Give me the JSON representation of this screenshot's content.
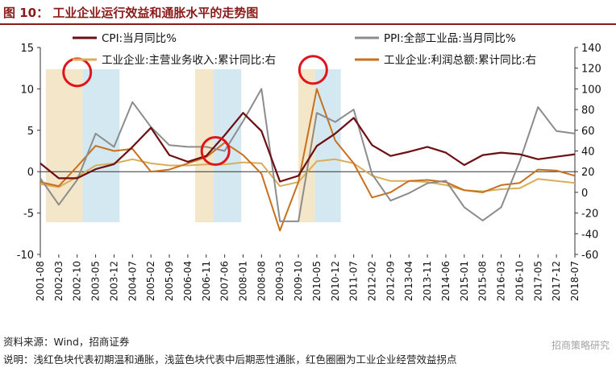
{
  "header": {
    "title": "图 10：  工业企业运行效益和通胀水平的走势图"
  },
  "footer": {
    "source": "资料来源：Wind，招商证券",
    "description": "说明：浅红色块代表初期温和通胀，浅蓝色块代表中后期恶性通胀，红色圈圈为工业企业经营效益拐点"
  },
  "watermark": "招商策略研究",
  "chart_data": {
    "type": "line",
    "x_tick_labels": [
      "2001-08",
      "2002-03",
      "2002-10",
      "2003-05",
      "2003-12",
      "2004-07",
      "2005-02",
      "2005-09",
      "2006-04",
      "2006-11",
      "2007-06",
      "2008-01",
      "2008-08",
      "2009-03",
      "2009-10",
      "2010-05",
      "2010-12",
      "2011-07",
      "2012-02",
      "2012-09",
      "2013-04",
      "2013-11",
      "2014-06",
      "2015-01",
      "2015-08",
      "2016-03",
      "2016-10",
      "2017-05",
      "2017-12",
      "2018-07"
    ],
    "left_axis": {
      "min": -10,
      "max": 15,
      "ticks": [
        -10,
        -5,
        0,
        5,
        10,
        15
      ]
    },
    "right_axis": {
      "min": -60,
      "max": 140,
      "ticks": [
        -60,
        -40,
        -20,
        0,
        20,
        40,
        60,
        80,
        100,
        120,
        140
      ]
    },
    "legend": [
      "CPI:当月同比%",
      "PPI:全部工业品:当月同比%",
      "工业企业:主营业务收入:累计同比:右",
      "工业企业:利润总额:累计同比:右"
    ],
    "series": [
      {
        "name": "CPI:当月同比%",
        "axis": "left",
        "color": "#6b0f14",
        "points": [
          [
            0,
            1.0
          ],
          [
            1,
            -0.8
          ],
          [
            2,
            -0.8
          ],
          [
            3,
            0.3
          ],
          [
            4,
            0.9
          ],
          [
            5,
            3.0
          ],
          [
            6,
            5.3
          ],
          [
            7,
            2.0
          ],
          [
            8,
            1.2
          ],
          [
            9,
            1.9
          ],
          [
            10,
            4.4
          ],
          [
            11,
            7.1
          ],
          [
            12,
            4.9
          ],
          [
            13,
            -1.2
          ],
          [
            14,
            -0.5
          ],
          [
            15,
            3.1
          ],
          [
            16,
            4.6
          ],
          [
            17,
            6.5
          ],
          [
            18,
            3.2
          ],
          [
            19,
            1.9
          ],
          [
            20,
            2.4
          ],
          [
            21,
            3.0
          ],
          [
            22,
            2.3
          ],
          [
            23,
            0.8
          ],
          [
            24,
            2.0
          ],
          [
            25,
            2.3
          ],
          [
            26,
            2.1
          ],
          [
            27,
            1.5
          ],
          [
            28,
            1.8
          ],
          [
            29,
            2.1
          ]
        ]
      },
      {
        "name": "PPI:全部工业品:当月同比%",
        "axis": "left",
        "color": "#8c8c8c",
        "points": [
          [
            0,
            -0.8
          ],
          [
            1,
            -4.0
          ],
          [
            2,
            -1.0
          ],
          [
            3,
            4.6
          ],
          [
            4,
            3.0
          ],
          [
            5,
            8.4
          ],
          [
            6,
            5.4
          ],
          [
            7,
            3.2
          ],
          [
            8,
            3.0
          ],
          [
            9,
            3.0
          ],
          [
            10,
            2.5
          ],
          [
            11,
            6.1
          ],
          [
            12,
            10.0
          ],
          [
            13,
            -6.0
          ],
          [
            14,
            -6.0
          ],
          [
            15,
            7.1
          ],
          [
            16,
            6.0
          ],
          [
            17,
            7.5
          ],
          [
            18,
            -0.3
          ],
          [
            19,
            -3.5
          ],
          [
            20,
            -2.6
          ],
          [
            21,
            -1.4
          ],
          [
            22,
            -1.1
          ],
          [
            23,
            -4.3
          ],
          [
            24,
            -5.9
          ],
          [
            25,
            -4.3
          ],
          [
            26,
            1.2
          ],
          [
            27,
            7.8
          ],
          [
            28,
            4.9
          ],
          [
            29,
            4.6
          ]
        ]
      },
      {
        "name": "工业企业:主营业务收入:累计同比:右",
        "axis": "right",
        "color": "#d9ae5b",
        "points": [
          [
            0,
            8
          ],
          [
            1,
            5
          ],
          [
            2,
            15
          ],
          [
            3,
            26
          ],
          [
            4,
            28
          ],
          [
            5,
            32
          ],
          [
            6,
            28
          ],
          [
            7,
            26
          ],
          [
            8,
            26
          ],
          [
            9,
            27
          ],
          [
            10,
            27
          ],
          [
            11,
            29
          ],
          [
            12,
            28
          ],
          [
            13,
            6
          ],
          [
            14,
            10
          ],
          [
            15,
            30
          ],
          [
            16,
            32
          ],
          [
            17,
            28
          ],
          [
            18,
            16
          ],
          [
            19,
            11
          ],
          [
            20,
            11
          ],
          [
            21,
            10
          ],
          [
            22,
            7
          ],
          [
            23,
            2
          ],
          [
            24,
            1
          ],
          [
            25,
            3
          ],
          [
            26,
            4
          ],
          [
            27,
            13
          ],
          [
            28,
            11
          ],
          [
            29,
            9
          ]
        ]
      },
      {
        "name": "工业企业:利润总额:累计同比:右",
        "axis": "right",
        "color": "#c8701e",
        "points": [
          [
            0,
            10
          ],
          [
            1,
            6
          ],
          [
            2,
            25
          ],
          [
            3,
            45
          ],
          [
            4,
            40
          ],
          [
            5,
            42
          ],
          [
            6,
            20
          ],
          [
            7,
            22
          ],
          [
            8,
            28
          ],
          [
            9,
            34
          ],
          [
            10,
            48
          ],
          [
            11,
            36
          ],
          [
            12,
            18
          ],
          [
            13,
            -37
          ],
          [
            14,
            10
          ],
          [
            15,
            100
          ],
          [
            16,
            50
          ],
          [
            17,
            28
          ],
          [
            18,
            -5
          ],
          [
            19,
            0
          ],
          [
            20,
            11
          ],
          [
            21,
            12
          ],
          [
            22,
            10
          ],
          [
            23,
            2
          ],
          [
            24,
            0
          ],
          [
            25,
            7
          ],
          [
            26,
            9
          ],
          [
            27,
            22
          ],
          [
            28,
            21
          ],
          [
            29,
            16
          ]
        ]
      }
    ],
    "annotations": {
      "shaded_warm": [
        [
          0.3,
          2.3
        ],
        [
          8.4,
          9.4
        ],
        [
          14.0,
          14.9
        ]
      ],
      "shaded_cool": [
        [
          2.3,
          4.3
        ],
        [
          9.4,
          10.9
        ],
        [
          14.9,
          16.3
        ]
      ],
      "circles": [
        [
          2.0,
          12.0
        ],
        [
          9.5,
          2.5
        ],
        [
          14.8,
          12.3
        ]
      ]
    }
  }
}
